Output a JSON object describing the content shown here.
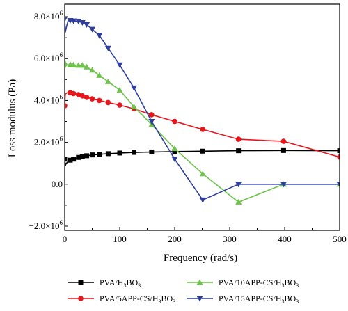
{
  "chart_data": {
    "type": "line",
    "xlabel": "Frequency (rad/s)",
    "ylabel": "Loss modulus (Pa)",
    "xlim": [
      0,
      500
    ],
    "ylim": [
      -2200000,
      8600000
    ],
    "x_ticks": [
      {
        "v": 0,
        "label": "0"
      },
      {
        "v": 100,
        "label": "100"
      },
      {
        "v": 200,
        "label": "200"
      },
      {
        "v": 300,
        "label": "300"
      },
      {
        "v": 400,
        "label": "400"
      },
      {
        "v": 500,
        "label": "500"
      }
    ],
    "y_ticks": [
      {
        "v": -2000000,
        "label": "−2.0×10",
        "exp": "6"
      },
      {
        "v": 0,
        "label": "0.0",
        "exp": ""
      },
      {
        "v": 2000000,
        "label": "2.0×10",
        "exp": "6"
      },
      {
        "v": 4000000,
        "label": "4.0×10",
        "exp": "6"
      },
      {
        "v": 6000000,
        "label": "6.0×10",
        "exp": "6"
      },
      {
        "v": 8000000,
        "label": "8.0×10",
        "exp": "6"
      }
    ],
    "series": [
      {
        "name": "PVA/H3BO3",
        "legend_parts": [
          "PVA/H",
          "3",
          "BO",
          "3",
          ""
        ],
        "color": "#000000",
        "marker": "square",
        "x": [
          0,
          1,
          3,
          6,
          10,
          16,
          25,
          32,
          40,
          50,
          63,
          79,
          100,
          126,
          158,
          200,
          251,
          316,
          398,
          500
        ],
        "y": [
          1200000,
          900000,
          1000000,
          1080000,
          1150000,
          1200000,
          1280000,
          1320000,
          1360000,
          1400000,
          1430000,
          1460000,
          1490000,
          1520000,
          1540000,
          1560000,
          1580000,
          1600000,
          1610000,
          1600000
        ]
      },
      {
        "name": "PVA/5APP-CS/H3BO3",
        "legend_parts": [
          "PVA/5APP-CS/H",
          "3",
          "BO",
          "3",
          ""
        ],
        "color": "#e8151b",
        "marker": "circle",
        "x": [
          0,
          1,
          3,
          6,
          10,
          16,
          25,
          32,
          40,
          50,
          63,
          79,
          100,
          126,
          158,
          200,
          251,
          316,
          398,
          500
        ],
        "y": [
          3750000,
          4300000,
          4350000,
          4380000,
          4370000,
          4330000,
          4280000,
          4220000,
          4150000,
          4080000,
          4000000,
          3900000,
          3780000,
          3600000,
          3320000,
          3000000,
          2620000,
          2150000,
          2050000,
          1300000
        ]
      },
      {
        "name": "PVA/10APP-CS/H3BO3",
        "legend_parts": [
          "PVA/10APP-CS/H",
          "3",
          "BO",
          "3",
          ""
        ],
        "color": "#6cc24a",
        "marker": "triangle-up",
        "x": [
          0,
          1,
          3,
          6,
          10,
          16,
          25,
          32,
          40,
          50,
          63,
          79,
          100,
          126,
          158,
          200,
          251,
          316,
          398,
          500
        ],
        "y": [
          5800000,
          5600000,
          5680000,
          5700000,
          5720000,
          5700000,
          5680000,
          5680000,
          5600000,
          5450000,
          5200000,
          4900000,
          4500000,
          3700000,
          2850000,
          1700000,
          500000,
          -850000,
          0,
          0
        ]
      },
      {
        "name": "PVA/15APP-CS/H3BO3",
        "legend_parts": [
          "PVA/15APP-CS/H",
          "3",
          "BO",
          "3",
          ""
        ],
        "color": "#2d3e9e",
        "marker": "triangle-down",
        "x": [
          0,
          1,
          3,
          6,
          10,
          16,
          25,
          32,
          40,
          50,
          63,
          79,
          100,
          126,
          158,
          200,
          251,
          316,
          398,
          500
        ],
        "y": [
          7900000,
          7250000,
          7500000,
          7800000,
          7820000,
          7800000,
          7780000,
          7720000,
          7620000,
          7400000,
          7100000,
          6500000,
          5700000,
          4600000,
          3000000,
          1200000,
          -750000,
          0,
          0,
          0
        ]
      }
    ]
  }
}
